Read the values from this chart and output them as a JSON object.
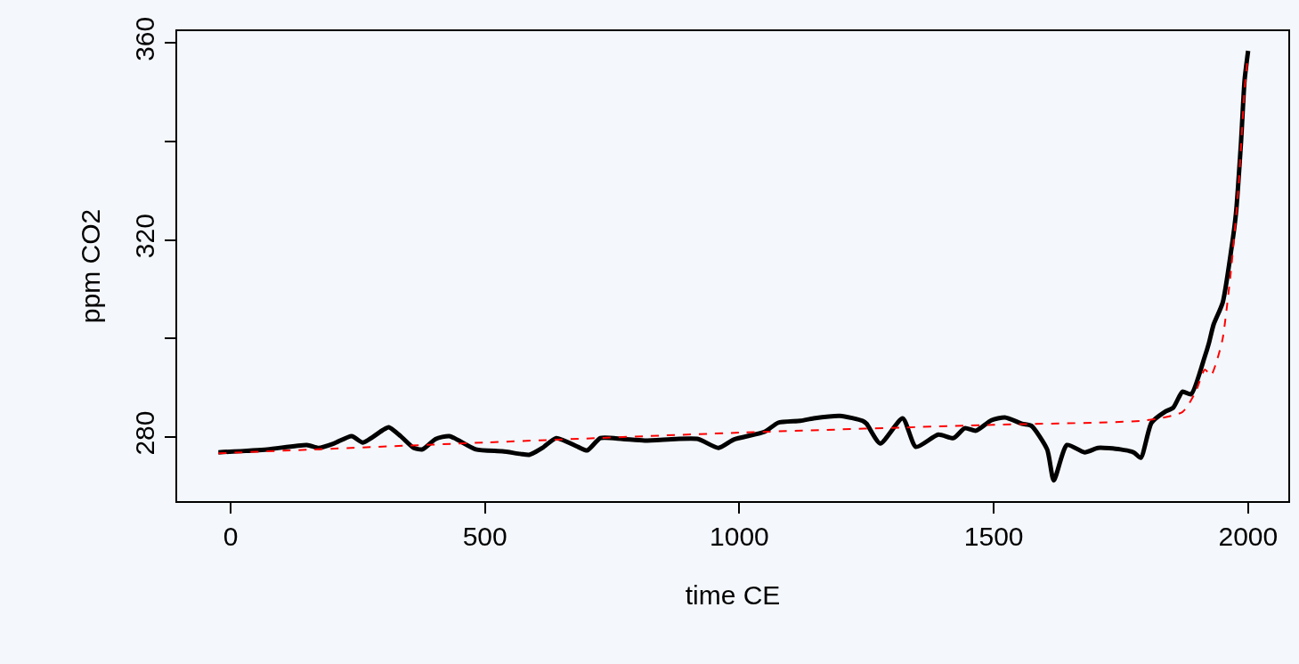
{
  "chart_data": {
    "type": "line",
    "xlabel": "time CE",
    "ylabel": "ppm CO2",
    "xlim": [
      -105,
      2079
    ],
    "ylim": [
      267,
      362.4
    ],
    "xticks": [
      0,
      500,
      1000,
      1500,
      2000
    ],
    "yticks": [
      280,
      {
        "value": 300,
        "label": null
      },
      320,
      {
        "value": 340,
        "label": null
      },
      360
    ],
    "marker": "none",
    "series": [
      {
        "color": "#000000",
        "line_style": "solid",
        "x": [
          -24,
          72,
          150,
          173,
          203,
          238,
          260,
          299,
          311,
          334,
          360,
          377,
          403,
          430,
          482,
          534,
          569,
          587,
          613,
          640,
          683,
          701,
          727,
          771,
          814,
          875,
          919,
          959,
          989,
          1050,
          1076,
          1120,
          1146,
          1198,
          1242,
          1250,
          1277,
          1321,
          1347,
          1391,
          1421,
          1443,
          1465,
          1495,
          1522,
          1556,
          1574,
          1605,
          1618,
          1644,
          1679,
          1705,
          1749,
          1775,
          1789,
          1810,
          1836,
          1853,
          1871,
          1888,
          1915,
          1923,
          1932,
          1950,
          1967,
          1976,
          1986,
          1993,
          2000
        ],
        "values": [
          276.9,
          277.5,
          278.4,
          277.8,
          278.7,
          280.2,
          278.9,
          281.4,
          282.0,
          280.2,
          277.8,
          277.5,
          279.6,
          280.2,
          277.5,
          277.1,
          276.6,
          276.4,
          277.8,
          279.8,
          278.0,
          277.3,
          279.8,
          279.6,
          279.3,
          279.6,
          279.6,
          277.8,
          279.5,
          281.1,
          282.9,
          283.3,
          283.8,
          284.3,
          283.3,
          282.7,
          278.7,
          283.8,
          278.0,
          280.5,
          279.8,
          281.8,
          281.3,
          283.4,
          284.0,
          282.7,
          282.3,
          277.5,
          271.2,
          278.4,
          276.9,
          277.8,
          277.5,
          276.9,
          275.8,
          282.9,
          285.1,
          286.0,
          289.2,
          288.7,
          296.4,
          299.1,
          302.8,
          307.3,
          318.1,
          325.3,
          339.8,
          352.4,
          358.4
        ]
      },
      {
        "color": "#ff0000",
        "line_style": "dashed",
        "x": [
          -24,
          500,
          1000,
          1500,
          1800,
          1871,
          1897,
          1915,
          1927,
          1937,
          1950,
          1967,
          1981,
          1993,
          1998
        ],
        "values": [
          276.7,
          278.9,
          280.9,
          282.5,
          283.4,
          285.1,
          289.2,
          293.7,
          292.5,
          295.0,
          300.0,
          314.5,
          330.7,
          350.6,
          356.0
        ]
      }
    ]
  }
}
